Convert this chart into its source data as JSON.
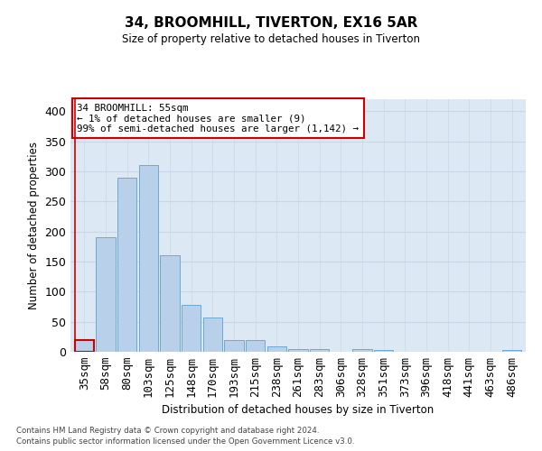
{
  "title": "34, BROOMHILL, TIVERTON, EX16 5AR",
  "subtitle": "Size of property relative to detached houses in Tiverton",
  "xlabel": "Distribution of detached houses by size in Tiverton",
  "ylabel": "Number of detached properties",
  "categories": [
    "35sqm",
    "58sqm",
    "80sqm",
    "103sqm",
    "125sqm",
    "148sqm",
    "170sqm",
    "193sqm",
    "215sqm",
    "238sqm",
    "261sqm",
    "283sqm",
    "306sqm",
    "328sqm",
    "351sqm",
    "373sqm",
    "396sqm",
    "418sqm",
    "441sqm",
    "463sqm",
    "486sqm"
  ],
  "values": [
    20,
    190,
    290,
    310,
    160,
    78,
    57,
    20,
    20,
    9,
    5,
    5,
    0,
    5,
    3,
    0,
    0,
    0,
    0,
    0,
    3
  ],
  "bar_color": "#b8d0ea",
  "bar_edge_color": "#6aaad4",
  "highlight_index": 0,
  "highlight_edge_color": "#cc0000",
  "annotation_text": "34 BROOMHILL: 55sqm\n← 1% of detached houses are smaller (9)\n99% of semi-detached houses are larger (1,142) →",
  "annotation_box_facecolor": "#ffffff",
  "annotation_box_edgecolor": "#cc0000",
  "red_line_color": "#cc0000",
  "ylim": [
    0,
    420
  ],
  "yticks": [
    0,
    50,
    100,
    150,
    200,
    250,
    300,
    350,
    400
  ],
  "grid_color": "#c8d8e8",
  "bg_color": "#dce8f4",
  "footer_line1": "Contains HM Land Registry data © Crown copyright and database right 2024.",
  "footer_line2": "Contains public sector information licensed under the Open Government Licence v3.0."
}
